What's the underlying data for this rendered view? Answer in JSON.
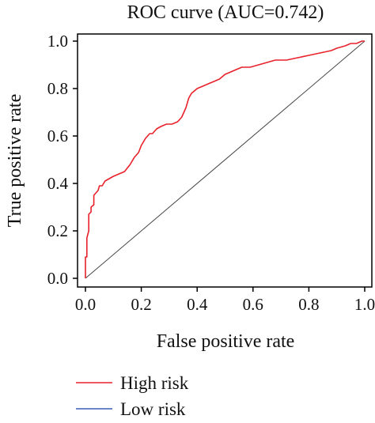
{
  "chart_data": {
    "type": "line",
    "title": "ROC curve (AUC=0.742)",
    "xlabel": "False positive rate",
    "ylabel": "True positive rate",
    "xlim": [
      0,
      1
    ],
    "ylim": [
      0,
      1
    ],
    "x_ticks": [
      "0.0",
      "0.2",
      "0.4",
      "0.6",
      "0.8",
      "1.0"
    ],
    "y_ticks": [
      "0.0",
      "0.2",
      "0.4",
      "0.6",
      "0.8",
      "1.0"
    ],
    "grid": false,
    "legend_position": "bottom-left",
    "series": [
      {
        "name": "High risk",
        "color": "#e8212b",
        "x": [
          0.0,
          0.0,
          0.005,
          0.005,
          0.012,
          0.012,
          0.02,
          0.02,
          0.03,
          0.03,
          0.045,
          0.05,
          0.06,
          0.07,
          0.085,
          0.1,
          0.12,
          0.14,
          0.16,
          0.175,
          0.19,
          0.2,
          0.215,
          0.23,
          0.24,
          0.255,
          0.27,
          0.29,
          0.31,
          0.33,
          0.345,
          0.36,
          0.37,
          0.38,
          0.39,
          0.4,
          0.42,
          0.44,
          0.46,
          0.48,
          0.5,
          0.52,
          0.54,
          0.56,
          0.59,
          0.62,
          0.65,
          0.68,
          0.72,
          0.76,
          0.8,
          0.84,
          0.88,
          0.9,
          0.93,
          0.95,
          0.97,
          0.99,
          1.0
        ],
        "y": [
          0.0,
          0.09,
          0.09,
          0.17,
          0.2,
          0.27,
          0.28,
          0.3,
          0.31,
          0.35,
          0.37,
          0.39,
          0.39,
          0.41,
          0.42,
          0.43,
          0.44,
          0.45,
          0.48,
          0.51,
          0.53,
          0.56,
          0.59,
          0.61,
          0.61,
          0.63,
          0.64,
          0.65,
          0.65,
          0.66,
          0.68,
          0.72,
          0.76,
          0.78,
          0.79,
          0.8,
          0.81,
          0.82,
          0.83,
          0.84,
          0.86,
          0.87,
          0.88,
          0.89,
          0.89,
          0.9,
          0.91,
          0.92,
          0.92,
          0.93,
          0.94,
          0.95,
          0.96,
          0.97,
          0.98,
          0.99,
          0.99,
          1.0,
          1.0
        ]
      },
      {
        "name": "Low risk",
        "color": "#3b5bb5",
        "x": [],
        "y": []
      }
    ]
  }
}
